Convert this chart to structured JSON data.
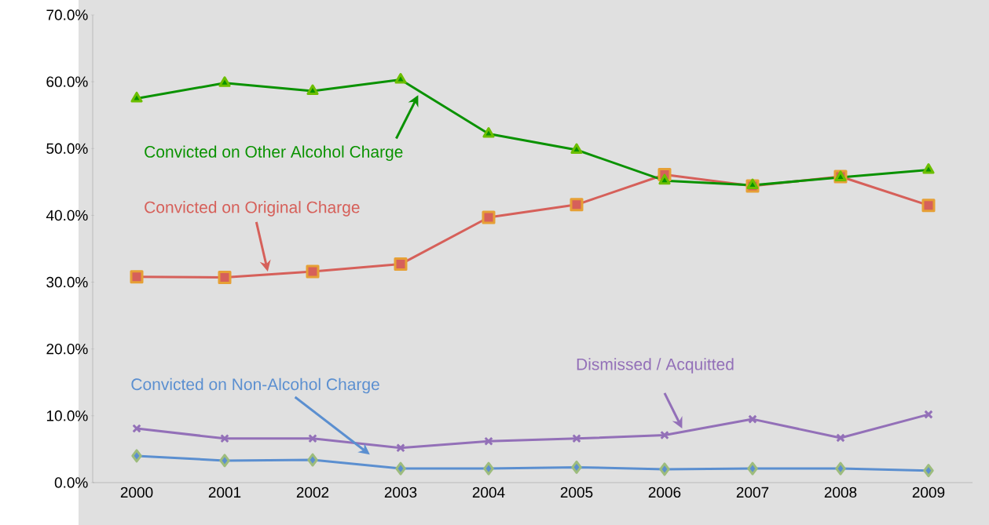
{
  "chart_data": {
    "type": "line",
    "categories": [
      "2000",
      "2001",
      "2002",
      "2003",
      "2004",
      "2005",
      "2006",
      "2007",
      "2008",
      "2009"
    ],
    "ylim": [
      0,
      70
    ],
    "yticks": [
      {
        "value": 0,
        "label": "0.0%"
      },
      {
        "value": 10,
        "label": "10.0%"
      },
      {
        "value": 20,
        "label": "20.0%"
      },
      {
        "value": 30,
        "label": "30.0%"
      },
      {
        "value": 40,
        "label": "40.0%"
      },
      {
        "value": 50,
        "label": "50.0%"
      },
      {
        "value": 60,
        "label": "60.0%"
      },
      {
        "value": 70,
        "label": "70.0%"
      }
    ],
    "grid": false,
    "series": [
      {
        "name": "Convicted on Other Alcohol Charge",
        "color": "#0a9200",
        "marker": "triangle",
        "values": [
          57.5,
          59.8,
          58.6,
          60.3,
          52.2,
          49.8,
          45.2,
          44.5,
          45.7,
          46.8
        ]
      },
      {
        "name": "Convicted on Original Charge",
        "color": "#d6605a",
        "marker": "square",
        "values": [
          30.8,
          30.7,
          31.6,
          32.7,
          39.7,
          41.6,
          46.1,
          44.4,
          45.8,
          41.5
        ]
      },
      {
        "name": "Dismissed / Acquitted",
        "color": "#9370b8",
        "marker": "cross",
        "values": [
          8.1,
          6.6,
          6.6,
          5.2,
          6.2,
          6.6,
          7.1,
          9.5,
          6.7,
          10.2
        ]
      },
      {
        "name": "Convicted on Non-Alcohol Charge",
        "color": "#5b8fd0",
        "marker": "diamond",
        "values": [
          4.0,
          3.3,
          3.4,
          2.1,
          2.1,
          2.3,
          2.0,
          2.1,
          2.1,
          1.8
        ]
      }
    ]
  }
}
